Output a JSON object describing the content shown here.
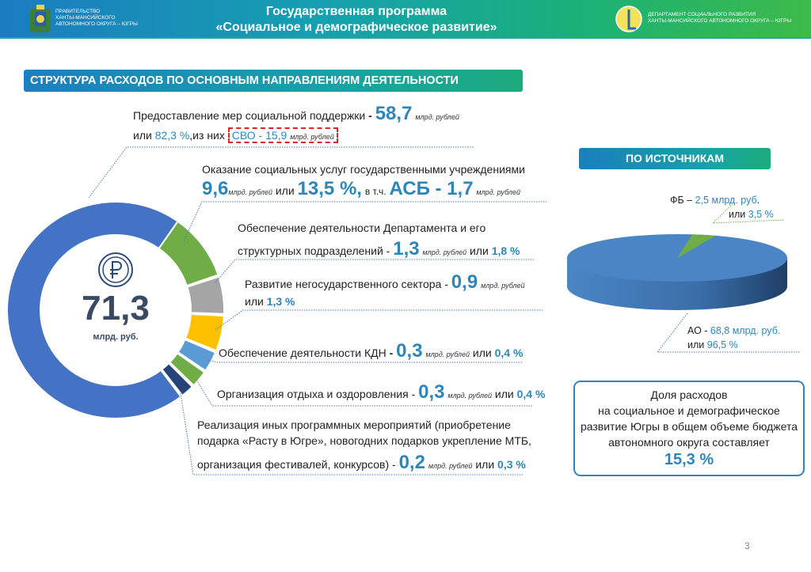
{
  "header": {
    "org_left": [
      "ПРАВИТЕЛЬСТВО",
      "ХАНТЫ-МАНСИЙСКОГО",
      "АВТОНОМНОГО ОКРУГА – ЮГРЫ"
    ],
    "title_line1": "Государственная программа",
    "title_line2": "«Социальное и демографическое развитие»",
    "org_right": [
      "ДЕПАРТАМЕНТ СОЦИАЛЬНОГО РАЗВИТИЯ",
      "ХАНТЫ-МАНСИЙСКОГО АВТОНОМНОГО ОКРУГА – ЮГРЫ"
    ]
  },
  "section_title": "СТРУКТУРА РАСХОДОВ ПО ОСНОВНЫМ НАПРАВЛЕНИЯМ ДЕЯТЕЛЬНОСТИ",
  "total": {
    "value": "71,3",
    "unit": "млрд. руб."
  },
  "unit_label": "млрд. рублей",
  "or_label": "или",
  "items": [
    {
      "label": "Предоставление мер социальной поддержки",
      "sep": "-",
      "value": "58,7",
      "percent": "82,3 %",
      "extra_prefix": ",из них",
      "extra": "СВО - 15,9",
      "color": "#4472c4"
    },
    {
      "label": "Оказание социальных услуг государственными учреждениями",
      "value": "9,6",
      "percent": "13,5 %,",
      "extra_prefix": "в т.ч.",
      "extra": "АСБ - 1,7",
      "color": "#70ad47"
    },
    {
      "label1": "Обеспечение деятельности Департамента и его",
      "label2": "структурных подразделений -",
      "value": "1,3",
      "percent": "1,8 %",
      "color": "#a5a5a5"
    },
    {
      "label": "Развитие негосударственного сектора -",
      "value": "0,9",
      "percent": "1,3 %",
      "color": "#ffc000"
    },
    {
      "label": "Обеспечение деятельности КДН",
      "sep": "-",
      "value": "0,3",
      "percent": "0,4 %",
      "color": "#5b9bd5"
    },
    {
      "label": "Организация отдыха и оздоровления -",
      "value": "0,3",
      "percent": "0,4 %",
      "color": "#70ad47"
    },
    {
      "label1": "Реализация иных программных мероприятий (приобретение",
      "label2": "подарка «Расту в Югре», новогодних подарков укрепление МТБ,",
      "label3": "организация фестивалей, конкурсов) -",
      "value": "0,2",
      "percent": "0,3 %",
      "color": "#264478"
    }
  ],
  "sources": {
    "title": "ПО ИСТОЧНИКАМ",
    "fb": {
      "name": "ФБ –",
      "amount": "2,5  млрд. руб",
      "dot": ".",
      "or": "или",
      "percent": "3,5 %",
      "share": 3.5,
      "color": "#70ad47"
    },
    "ao": {
      "name": "АО -",
      "amount": "68,8 млрд. руб.",
      "or": "или",
      "percent": "96,5 %",
      "share": 96.5,
      "color": "#4a86c5"
    }
  },
  "share_box": {
    "lines": [
      "Доля расходов",
      "на социальное и демографическое",
      "развитие Югры в общем объеме бюджета",
      "автономного округа составляет"
    ],
    "value": "15,3 %"
  },
  "page_number": "3"
}
